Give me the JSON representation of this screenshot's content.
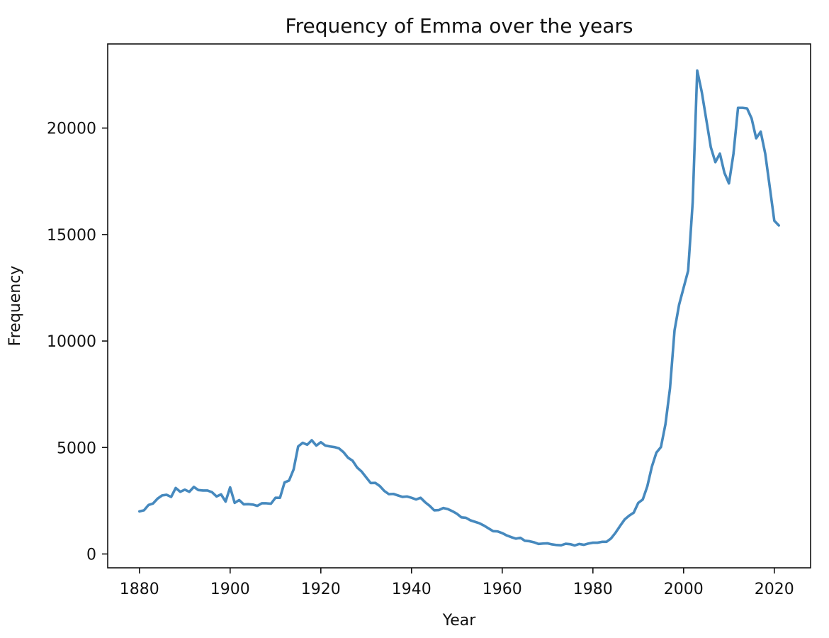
{
  "chart_data": {
    "type": "line",
    "title": "Frequency of Emma over the years",
    "xlabel": "Year",
    "ylabel": "Frequency",
    "xlim": [
      1873,
      2028
    ],
    "ylim": [
      -650,
      23950
    ],
    "xticks": [
      1880,
      1900,
      1920,
      1940,
      1960,
      1980,
      2000,
      2020
    ],
    "yticks": [
      0,
      5000,
      10000,
      15000,
      20000
    ],
    "grid": false,
    "line_color": "#4689BE",
    "series": [
      {
        "x": [
          1880,
          1881,
          1882,
          1883,
          1884,
          1885,
          1886,
          1887,
          1888,
          1889,
          1890,
          1891,
          1892,
          1893,
          1894,
          1895,
          1896,
          1897,
          1898,
          1899,
          1900,
          1901,
          1902,
          1903,
          1904,
          1905,
          1906,
          1907,
          1908,
          1909,
          1910,
          1911,
          1912,
          1913,
          1914,
          1915,
          1916,
          1917,
          1918,
          1919,
          1920,
          1921,
          1922,
          1923,
          1924,
          1925,
          1926,
          1927,
          1928,
          1929,
          1930,
          1931,
          1932,
          1933,
          1934,
          1935,
          1936,
          1937,
          1938,
          1939,
          1940,
          1941,
          1942,
          1943,
          1944,
          1945,
          1946,
          1947,
          1948,
          1949,
          1950,
          1951,
          1952,
          1953,
          1954,
          1955,
          1956,
          1957,
          1958,
          1959,
          1960,
          1961,
          1962,
          1963,
          1964,
          1965,
          1966,
          1967,
          1968,
          1969,
          1970,
          1971,
          1972,
          1973,
          1974,
          1975,
          1976,
          1977,
          1978,
          1979,
          1980,
          1981,
          1982,
          1983,
          1984,
          1985,
          1986,
          1987,
          1988,
          1989,
          1990,
          1991,
          1992,
          1993,
          1994,
          1995,
          1996,
          1997,
          1998,
          1999,
          2000,
          2001,
          2002,
          2003,
          2004,
          2005,
          2006,
          2007,
          2008,
          2009,
          2010,
          2011,
          2012,
          2013,
          2014,
          2015,
          2016,
          2017,
          2018,
          2019,
          2020,
          2021
        ],
        "y": [
          2000,
          2050,
          2300,
          2370,
          2600,
          2750,
          2780,
          2680,
          3100,
          2920,
          3020,
          2920,
          3150,
          3000,
          2980,
          2980,
          2900,
          2700,
          2800,
          2460,
          3130,
          2400,
          2530,
          2330,
          2340,
          2320,
          2260,
          2380,
          2380,
          2360,
          2640,
          2640,
          3360,
          3450,
          3970,
          5050,
          5220,
          5130,
          5340,
          5090,
          5250,
          5090,
          5050,
          5020,
          4960,
          4780,
          4520,
          4380,
          4060,
          3870,
          3600,
          3330,
          3340,
          3190,
          2960,
          2810,
          2820,
          2750,
          2680,
          2700,
          2640,
          2560,
          2640,
          2430,
          2260,
          2050,
          2060,
          2160,
          2110,
          2010,
          1890,
          1720,
          1700,
          1580,
          1510,
          1440,
          1330,
          1200,
          1070,
          1060,
          980,
          870,
          790,
          720,
          760,
          620,
          600,
          550,
          470,
          490,
          500,
          450,
          420,
          410,
          480,
          460,
          400,
          470,
          430,
          490,
          530,
          530,
          570,
          570,
          730,
          1000,
          1320,
          1620,
          1800,
          1940,
          2400,
          2560,
          3180,
          4100,
          4760,
          5020,
          6100,
          7780,
          10500,
          11700,
          12500,
          13300,
          16500,
          22700,
          21700,
          20400,
          19100,
          18400,
          18800,
          17900,
          17400,
          18800,
          20950,
          20950,
          20920,
          20450,
          19520,
          19830,
          18800,
          17230,
          15650,
          15430
        ]
      }
    ]
  }
}
